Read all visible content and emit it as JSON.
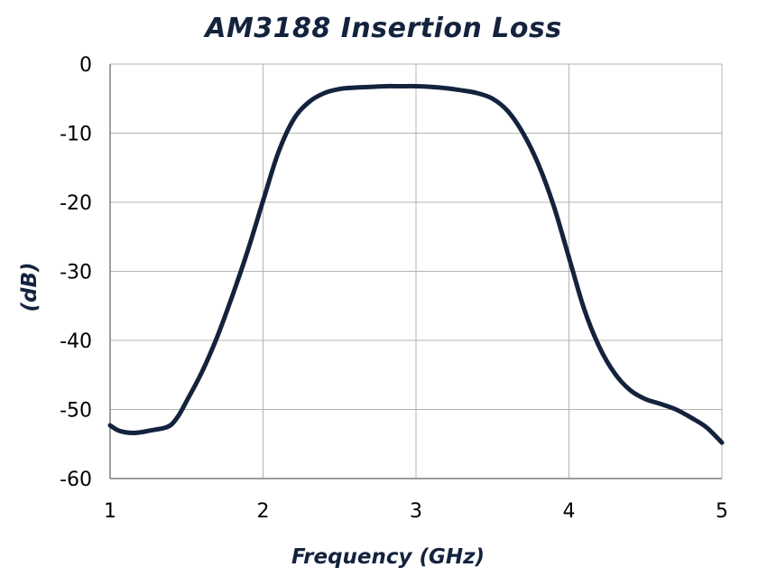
{
  "chart_data": {
    "type": "line",
    "title": "AM3188 Insertion Loss",
    "xlabel": "Frequency (GHz)",
    "ylabel": "(dB)",
    "xlim": [
      1,
      5
    ],
    "ylim": [
      -60,
      0
    ],
    "xticks": [
      "1",
      "2",
      "3",
      "4",
      "5"
    ],
    "yticks": [
      "0",
      "-10",
      "-20",
      "-30",
      "-40",
      "-50",
      "-60"
    ],
    "grid": true,
    "line_color": "#14233d",
    "series": [
      {
        "x": [
          1.0,
          1.05,
          1.1,
          1.15,
          1.2,
          1.25,
          1.3,
          1.35,
          1.4,
          1.45,
          1.5,
          1.6,
          1.7,
          1.8,
          1.9,
          2.0,
          2.1,
          2.2,
          2.3,
          2.4,
          2.5,
          2.6,
          2.7,
          2.8,
          2.9,
          3.0,
          3.1,
          3.2,
          3.3,
          3.4,
          3.5,
          3.6,
          3.7,
          3.8,
          3.9,
          4.0,
          4.1,
          4.2,
          4.3,
          4.4,
          4.5,
          4.6,
          4.7,
          4.8,
          4.9,
          5.0
        ],
        "y": [
          -52.3,
          -53.0,
          -53.3,
          -53.4,
          -53.3,
          -53.1,
          -52.9,
          -52.7,
          -52.2,
          -50.8,
          -48.8,
          -44.6,
          -39.5,
          -33.5,
          -27.0,
          -19.8,
          -12.8,
          -8.0,
          -5.5,
          -4.2,
          -3.6,
          -3.4,
          -3.3,
          -3.2,
          -3.2,
          -3.2,
          -3.3,
          -3.5,
          -3.8,
          -4.2,
          -5.0,
          -6.8,
          -10.0,
          -14.5,
          -20.5,
          -28.0,
          -35.5,
          -41.0,
          -44.8,
          -47.2,
          -48.5,
          -49.2,
          -50.0,
          -51.2,
          -52.6,
          -54.8
        ]
      }
    ]
  }
}
